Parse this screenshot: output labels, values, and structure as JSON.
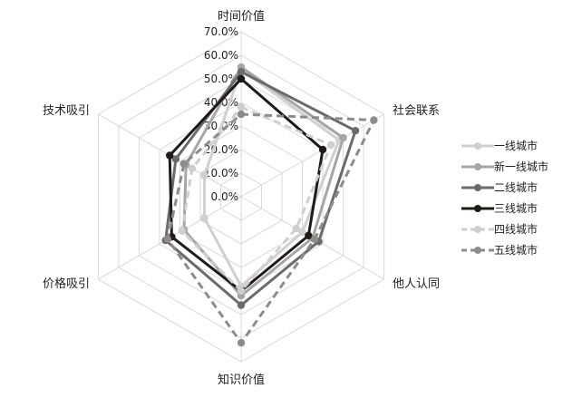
{
  "chart_data": {
    "type": "radar",
    "axes": [
      "时间价值",
      "社会联系",
      "他人认同",
      "知识价值",
      "价格吸引",
      "技术吸引"
    ],
    "ticks": [
      "0.0%",
      "10.0%",
      "20.0%",
      "30.0%",
      "40.0%",
      "50.0%",
      "60.0%",
      "70.0%"
    ],
    "rlim": [
      0,
      70
    ],
    "grid": true,
    "legend_position": "right",
    "series": [
      {
        "name": "一线城市",
        "values": [
          54,
          48,
          30,
          38,
          18,
          18
        ],
        "color": "#d0d0d0",
        "dash": false
      },
      {
        "name": "新一线城市",
        "values": [
          55,
          50,
          35,
          42,
          28,
          27
        ],
        "color": "#a6a6a6",
        "dash": false
      },
      {
        "name": "二线城市",
        "values": [
          53,
          56,
          38,
          46,
          37,
          32
        ],
        "color": "#6b6b6b",
        "dash": false
      },
      {
        "name": "三线城市",
        "values": [
          50,
          40,
          33,
          40,
          34,
          35
        ],
        "color": "#1f1a1a",
        "dash": false
      },
      {
        "name": "四线城市",
        "values": [
          38,
          44,
          27,
          40,
          29,
          24
        ],
        "color": "#cfcfcf",
        "dash": true
      },
      {
        "name": "五线城市",
        "values": [
          35,
          65,
          36,
          62,
          36,
          28
        ],
        "color": "#8c8c8c",
        "dash": true
      }
    ]
  }
}
